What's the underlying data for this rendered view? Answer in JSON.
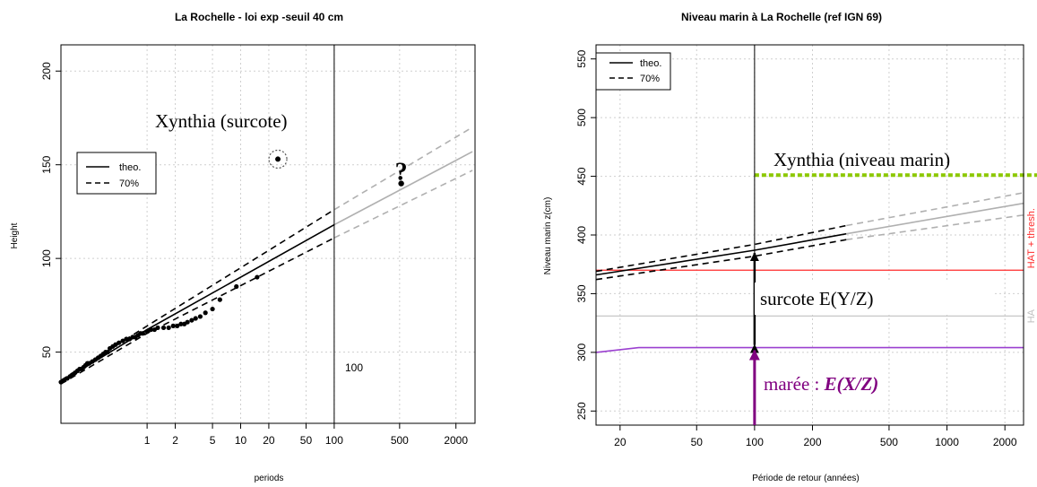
{
  "chart_data": [
    {
      "type": "line",
      "title": "La Rochelle - loi exp -seuil 40 cm",
      "xlabel": "periods",
      "ylabel": "Height",
      "xscale": "log",
      "xlim": [
        0.12,
        3200
      ],
      "ylim": [
        12,
        214
      ],
      "xticks": [
        1,
        2,
        5,
        10,
        20,
        50,
        100,
        500,
        2000
      ],
      "xtick_labels": [
        "1",
        "2",
        "5",
        "10",
        "20",
        "50",
        "100",
        "500",
        "2000"
      ],
      "yticks": [
        50,
        100,
        150,
        200
      ],
      "ytick_labels": [
        "50",
        "100",
        "150",
        "200"
      ],
      "grid": true,
      "legend": {
        "position": "left",
        "entries": [
          "theo.",
          "70%"
        ]
      },
      "series": [
        {
          "name": "theo.",
          "x": [
            0.12,
            1,
            100
          ],
          "y": [
            34,
            62,
            118
          ],
          "style": "solid",
          "color": "#000000"
        },
        {
          "name": "theo.",
          "x": [
            100,
            3000
          ],
          "y": [
            118,
            157
          ],
          "style": "solid",
          "color": "#b0b0b0"
        },
        {
          "name": "70%",
          "x": [
            0.12,
            1,
            100
          ],
          "y": [
            33,
            60,
            111
          ],
          "style": "dashed",
          "color": "#000000"
        },
        {
          "name": "70%",
          "x": [
            0.12,
            1,
            100
          ],
          "y": [
            35,
            64,
            126
          ],
          "style": "dashed",
          "color": "#000000"
        },
        {
          "name": "70%",
          "x": [
            100,
            3000
          ],
          "y": [
            111,
            147
          ],
          "style": "dashed",
          "color": "#b0b0b0"
        },
        {
          "name": "70%",
          "x": [
            100,
            3000
          ],
          "y": [
            126,
            170
          ],
          "style": "dashed",
          "color": "#b0b0b0"
        }
      ],
      "observations": {
        "x": [
          0.12,
          0.13,
          0.14,
          0.15,
          0.16,
          0.17,
          0.18,
          0.19,
          0.2,
          0.21,
          0.22,
          0.23,
          0.24,
          0.26,
          0.28,
          0.3,
          0.32,
          0.34,
          0.36,
          0.38,
          0.4,
          0.43,
          0.46,
          0.5,
          0.55,
          0.6,
          0.65,
          0.7,
          0.75,
          0.8,
          0.85,
          0.9,
          1.0,
          1.1,
          1.2,
          1.3,
          1.5,
          1.7,
          1.9,
          2.1,
          2.3,
          2.5,
          2.7,
          3.0,
          3.3,
          3.7,
          4.2,
          5.0,
          6.0,
          9.0,
          15.0
        ],
        "y": [
          34,
          35,
          36,
          37,
          38,
          39,
          40,
          41,
          41,
          42,
          43,
          44,
          44,
          45,
          46,
          47,
          48,
          49,
          50,
          50,
          52,
          53,
          54,
          55,
          56,
          57,
          57,
          58,
          58,
          59,
          60,
          60,
          61,
          62,
          62,
          63,
          63,
          63,
          64,
          64,
          65,
          65,
          66,
          67,
          68,
          69,
          71,
          73,
          78,
          85,
          90
        ]
      },
      "xynthia_point": {
        "x": 25,
        "y": 153
      },
      "estimate_point": {
        "x": 520,
        "y": 140
      },
      "vline_x": 100,
      "annotations": {
        "xynthia": "Xynthia (surcote)",
        "question": "?",
        "vline_label": "100"
      }
    },
    {
      "type": "line",
      "title": "Niveau marin à La Rochelle (ref IGN 69)",
      "xlabel": "Période de retour (années)",
      "ylabel": "Niveau marin z(cm)",
      "xscale": "log",
      "xlim": [
        15,
        2500
      ],
      "ylim": [
        238,
        562
      ],
      "xticks": [
        20,
        50,
        100,
        200,
        500,
        1000,
        2000
      ],
      "xtick_labels": [
        "20",
        "50",
        "100",
        "200",
        "500",
        "1000",
        "2000"
      ],
      "yticks": [
        250,
        300,
        350,
        400,
        450,
        500,
        550
      ],
      "ytick_labels": [
        "250",
        "300",
        "350",
        "400",
        "450",
        "500",
        "550"
      ],
      "grid": true,
      "legend": {
        "position": "top-left",
        "entries": [
          "theo.",
          "70%"
        ]
      },
      "series": [
        {
          "name": "theo.",
          "x": [
            15,
            100,
            300
          ],
          "y": [
            366,
            387,
            401
          ],
          "style": "solid",
          "color": "#000000"
        },
        {
          "name": "theo.",
          "x": [
            300,
            2500
          ],
          "y": [
            401,
            427
          ],
          "style": "solid",
          "color": "#b0b0b0"
        },
        {
          "name": "70%",
          "x": [
            15,
            100,
            300
          ],
          "y": [
            362,
            382,
            396
          ],
          "style": "dashed",
          "color": "#000000"
        },
        {
          "name": "70%",
          "x": [
            15,
            100,
            300
          ],
          "y": [
            369,
            392,
            408
          ],
          "style": "dashed",
          "color": "#000000"
        },
        {
          "name": "70%",
          "x": [
            300,
            2500
          ],
          "y": [
            396,
            417
          ],
          "style": "dashed",
          "color": "#b0b0b0"
        },
        {
          "name": "70%",
          "x": [
            300,
            2500
          ],
          "y": [
            408,
            436
          ],
          "style": "dashed",
          "color": "#b0b0b0"
        },
        {
          "name": "",
          "x": [
            15,
            25,
            2500
          ],
          "y": [
            300,
            304,
            304
          ],
          "style": "solid",
          "color": "#9b40d0"
        }
      ],
      "hlines": [
        {
          "y": 370,
          "color": "#ff2a2a",
          "label": "HAT + thresh."
        },
        {
          "y": 331,
          "color": "#c0c0c0",
          "label": "HA"
        }
      ],
      "xynthia_level": {
        "y": 451,
        "x_from": 100,
        "color": "#8cc800"
      },
      "vline_x": 100,
      "surcote_arrow": {
        "x": 100,
        "y_from": 304,
        "y_to": 387
      },
      "maree_arrow": {
        "x": 100,
        "y_from": 238,
        "y_to": 304,
        "color": "#800080"
      },
      "annotations": {
        "xynthia": "Xynthia (niveau marin)",
        "surcote": "surcote E(Y/Z)",
        "maree_prefix": "marée : ",
        "maree_formula": "E(X/Z)"
      }
    }
  ]
}
